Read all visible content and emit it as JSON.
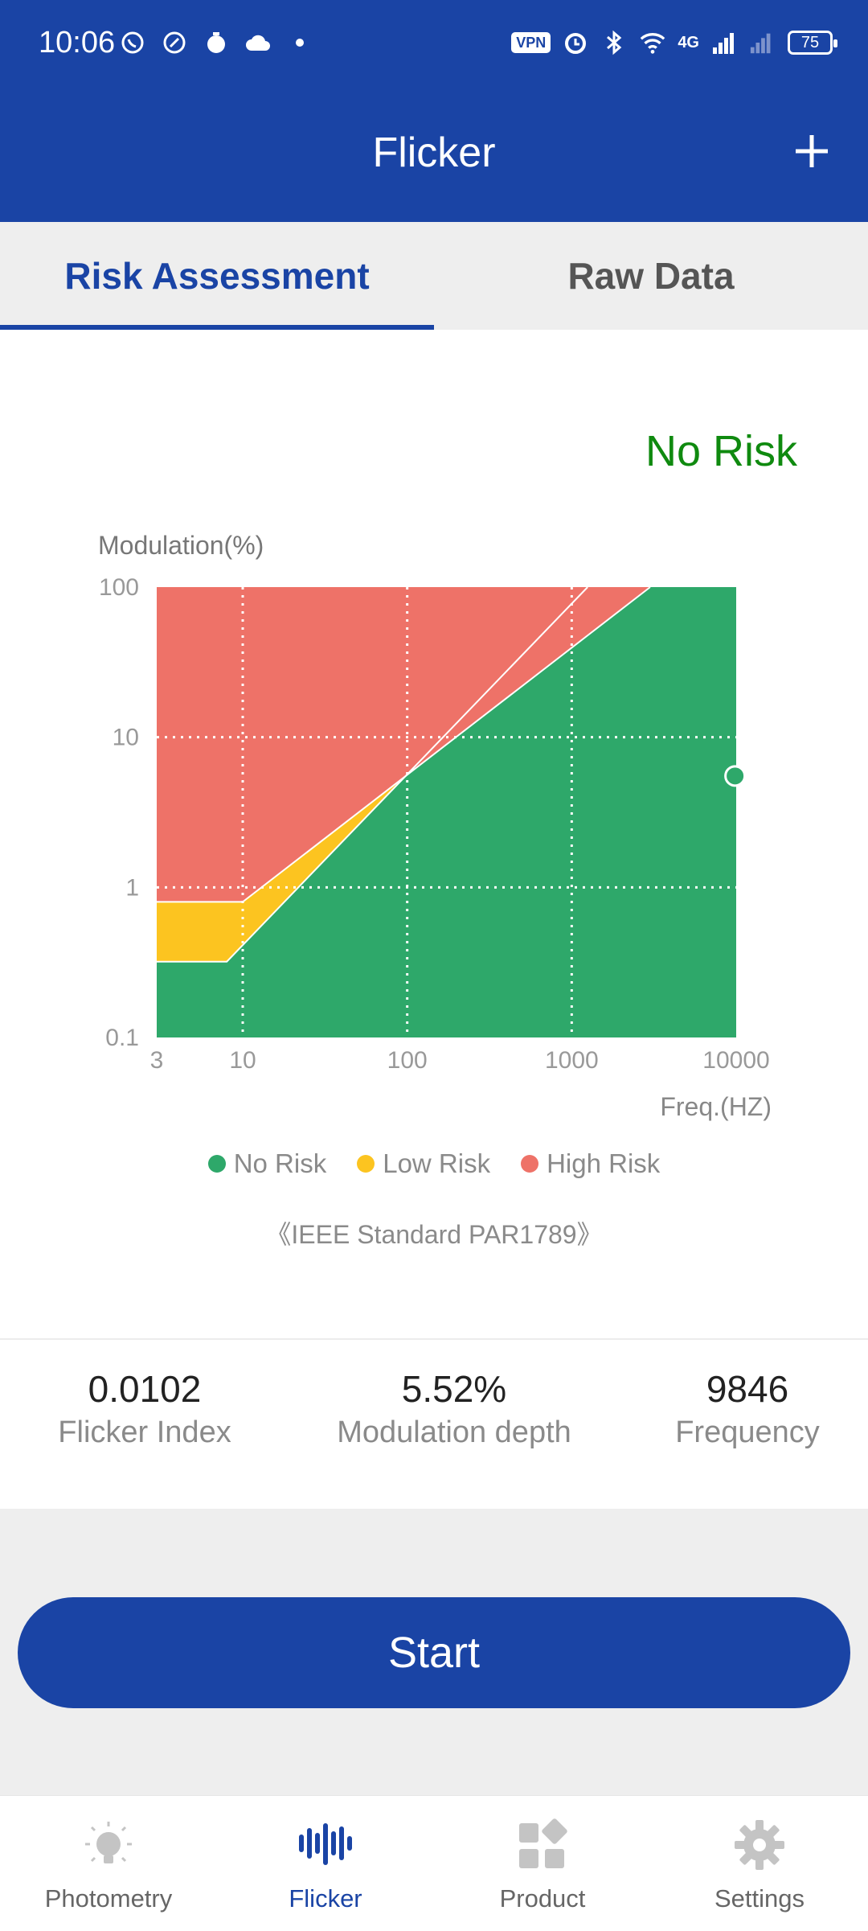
{
  "status_bar": {
    "time": "10:06",
    "vpn_label": "VPN",
    "network_label": "4G",
    "battery": "75"
  },
  "header": {
    "title": "Flicker",
    "add_icon": "plus-icon"
  },
  "tabs": [
    {
      "label": "Risk Assessment",
      "active": true
    },
    {
      "label": "Raw Data",
      "active": false
    }
  ],
  "risk_result": "No Risk",
  "colors": {
    "primary": "#1a44a5",
    "no_risk": "#2ea86a",
    "low_risk": "#fcc420",
    "high_risk": "#ee7268",
    "result_text": "#0f8a0f"
  },
  "chart_data": {
    "type": "area",
    "ylabel": "Modulation(%)",
    "xlabel": "Freq.(HZ)",
    "x_scale": "log",
    "y_scale": "log",
    "xlim": [
      3,
      10000
    ],
    "ylim": [
      0.1,
      100
    ],
    "x_ticks": [
      "3",
      "10",
      "100",
      "1000",
      "10000"
    ],
    "y_ticks": [
      "100",
      "10",
      "1",
      "0.1"
    ],
    "grid": true,
    "regions": [
      {
        "name": "High Risk",
        "boundary_lower": [
          [
            3,
            0.8
          ],
          [
            10,
            0.8
          ],
          [
            3000,
            100
          ]
        ]
      },
      {
        "name": "Low Risk",
        "boundary_lower": [
          [
            3,
            0.32
          ],
          [
            8,
            0.32
          ],
          [
            1250,
            100
          ]
        ]
      },
      {
        "name": "No Risk"
      }
    ],
    "point": {
      "x": 9846,
      "y": 5.52
    },
    "legend": [
      {
        "label": "No Risk",
        "color": "#2ea86a"
      },
      {
        "label": "Low Risk",
        "color": "#fcc420"
      },
      {
        "label": "High Risk",
        "color": "#ee7268"
      }
    ],
    "legend_position": "bottom",
    "standard": "《IEEE Standard PAR1789》"
  },
  "metrics": [
    {
      "value": "0.0102",
      "label": "Flicker Index"
    },
    {
      "value": "5.52%",
      "label": "Modulation depth"
    },
    {
      "value": "9846",
      "label": "Frequency"
    }
  ],
  "start_button": "Start",
  "bottom_nav": [
    {
      "label": "Photometry",
      "icon": "bulb-icon",
      "active": false
    },
    {
      "label": "Flicker",
      "icon": "waveform-icon",
      "active": true
    },
    {
      "label": "Product",
      "icon": "grid-icon",
      "active": false
    },
    {
      "label": "Settings",
      "icon": "gear-icon",
      "active": false
    }
  ]
}
